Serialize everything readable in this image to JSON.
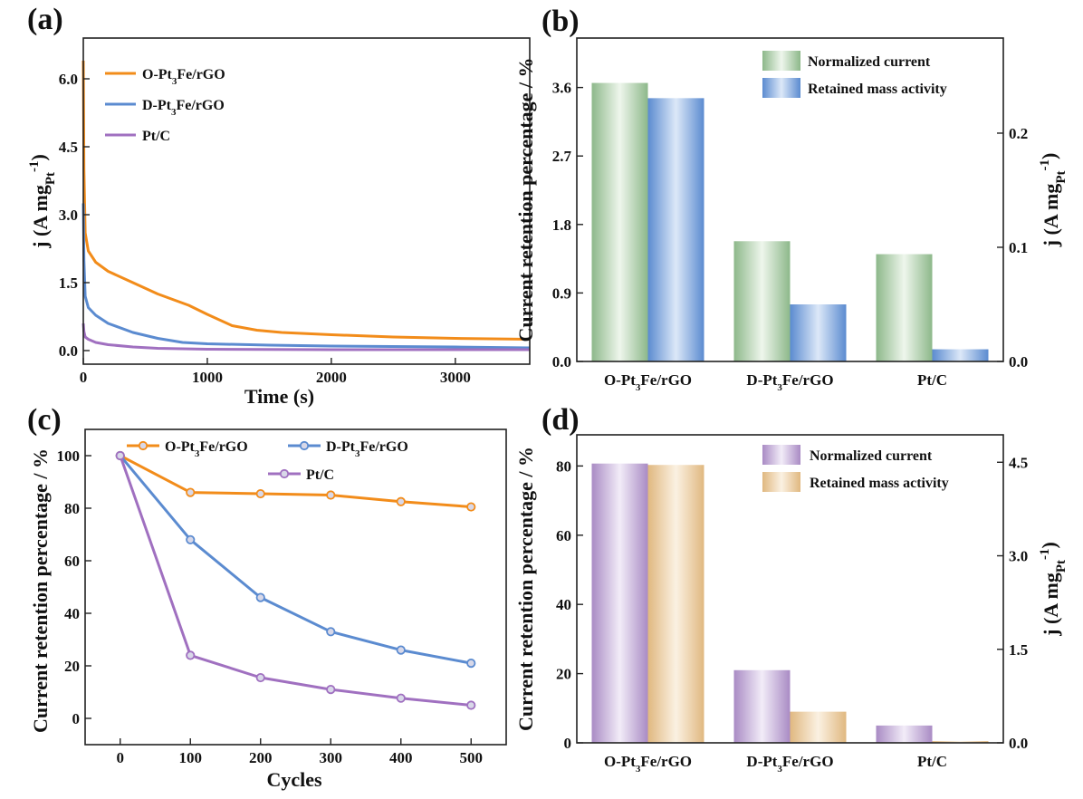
{
  "chart_data": [
    {
      "panel": "(a)",
      "type": "line",
      "xlabel": "Time (s)",
      "ylabel_parts": [
        "j (A mg",
        "Pt",
        "-1",
        ")"
      ],
      "xlim": [
        0,
        3600
      ],
      "ylim": [
        -0.3,
        6.9
      ],
      "xticks": [
        0,
        1000,
        2000,
        3000
      ],
      "yticks": [
        0.0,
        1.5,
        3.0,
        4.5,
        6.0
      ],
      "legend_position": "top-left",
      "series": [
        {
          "name": "O-Pt3Fe/rGO",
          "label_parts": [
            "O-Pt",
            "3",
            "Fe/rGO"
          ],
          "color": "#F28C1A",
          "x": [
            0,
            5,
            15,
            40,
            100,
            200,
            400,
            600,
            850,
            1000,
            1200,
            1400,
            1600,
            2000,
            2500,
            3000,
            3600
          ],
          "y": [
            6.4,
            4.0,
            2.6,
            2.2,
            1.95,
            1.75,
            1.5,
            1.25,
            1.0,
            0.8,
            0.55,
            0.45,
            0.4,
            0.35,
            0.3,
            0.27,
            0.25
          ]
        },
        {
          "name": "D-Pt3Fe/rGO",
          "label_parts": [
            "D-Pt",
            "3",
            "Fe/rGO"
          ],
          "color": "#5B8BD0",
          "x": [
            0,
            5,
            15,
            40,
            100,
            200,
            400,
            600,
            800,
            1000,
            1500,
            2000,
            3000,
            3600
          ],
          "y": [
            3.25,
            2.0,
            1.2,
            0.95,
            0.78,
            0.6,
            0.4,
            0.27,
            0.18,
            0.15,
            0.12,
            0.1,
            0.08,
            0.06
          ]
        },
        {
          "name": "Pt/C",
          "label_parts": [
            "Pt/C"
          ],
          "color": "#A070C0",
          "x": [
            0,
            5,
            15,
            40,
            100,
            200,
            400,
            600,
            1000,
            2000,
            3600
          ],
          "y": [
            0.6,
            0.42,
            0.3,
            0.25,
            0.18,
            0.13,
            0.08,
            0.05,
            0.03,
            0.02,
            0.02
          ]
        }
      ]
    },
    {
      "panel": "(b)",
      "type": "bar",
      "categories": [
        "O-Pt3Fe/rGO",
        "D-Pt3Fe/rGO",
        "Pt/C"
      ],
      "category_parts": [
        [
          "O-Pt",
          "3",
          "Fe/rGO"
        ],
        [
          "D-Pt",
          "3",
          "Fe/rGO"
        ],
        [
          "Pt/C"
        ]
      ],
      "ylabel": "Current retention percentage / %",
      "y2label_parts": [
        "j (A mg",
        "Pt",
        "-1",
        ")"
      ],
      "ylim": [
        0,
        4.25
      ],
      "yticks": [
        0.0,
        0.9,
        1.8,
        2.7,
        3.6
      ],
      "y2lim": [
        0,
        0.2833
      ],
      "y2ticks": [
        0.0,
        0.1,
        0.2
      ],
      "legend_position": "top-right",
      "series": [
        {
          "name": "Normalized current",
          "color": "#8DB88A",
          "axis": "left",
          "values": [
            3.66,
            1.58,
            1.41
          ]
        },
        {
          "name": "Retained mass activity",
          "color": "#5B8BD0",
          "axis": "left",
          "values": [
            3.46,
            0.75,
            0.16
          ]
        }
      ]
    },
    {
      "panel": "(c)",
      "type": "line",
      "xlabel": "Cycles",
      "ylabel": "Current retention percentage  / %",
      "xlim": [
        -50,
        550
      ],
      "ylim": [
        -10,
        110
      ],
      "xticks": [
        0,
        100,
        200,
        300,
        400,
        500
      ],
      "yticks": [
        0,
        20,
        40,
        60,
        80,
        100
      ],
      "legend_position": "top",
      "series": [
        {
          "name": "O-Pt3Fe/rGO",
          "label_parts": [
            "O-Pt",
            "3",
            "Fe/rGO"
          ],
          "color": "#F28C1A",
          "x": [
            0,
            100,
            200,
            300,
            400,
            500
          ],
          "y": [
            100,
            86,
            85.5,
            85,
            82.5,
            80.5
          ]
        },
        {
          "name": "D-Pt3Fe/rGO",
          "label_parts": [
            "D-Pt",
            "3",
            "Fe/rGO"
          ],
          "color": "#5B8BD0",
          "x": [
            0,
            100,
            200,
            300,
            400,
            500
          ],
          "y": [
            100,
            68,
            46,
            33,
            26,
            21
          ]
        },
        {
          "name": "Pt/C",
          "label_parts": [
            "Pt/C"
          ],
          "color": "#A070C0",
          "x": [
            0,
            100,
            200,
            300,
            400,
            500
          ],
          "y": [
            100,
            24,
            15.5,
            11,
            7.7,
            5
          ]
        }
      ]
    },
    {
      "panel": "(d)",
      "type": "bar",
      "categories": [
        "O-Pt3Fe/rGO",
        "D-Pt3Fe/rGO",
        "Pt/C"
      ],
      "category_parts": [
        [
          "O-Pt",
          "3",
          "Fe/rGO"
        ],
        [
          "D-Pt",
          "3",
          "Fe/rGO"
        ],
        [
          "Pt/C"
        ]
      ],
      "ylabel": "Current retention percentage / %",
      "y2label_parts": [
        "j (A mg",
        "Pt",
        "-1",
        ")"
      ],
      "ylim": [
        0,
        89
      ],
      "yticks": [
        0,
        20,
        40,
        60,
        80
      ],
      "y2lim": [
        0,
        4.94
      ],
      "y2ticks": [
        0.0,
        1.5,
        3.0,
        4.5
      ],
      "legend_position": "top-right",
      "series": [
        {
          "name": "Normalized current",
          "color": "#A98BC4",
          "axis": "left",
          "values": [
            80.7,
            21,
            5
          ]
        },
        {
          "name": "Retained mass activity",
          "color": "#E0B880",
          "axis": "left",
          "values": [
            80.3,
            9,
            0.5
          ]
        }
      ]
    }
  ]
}
